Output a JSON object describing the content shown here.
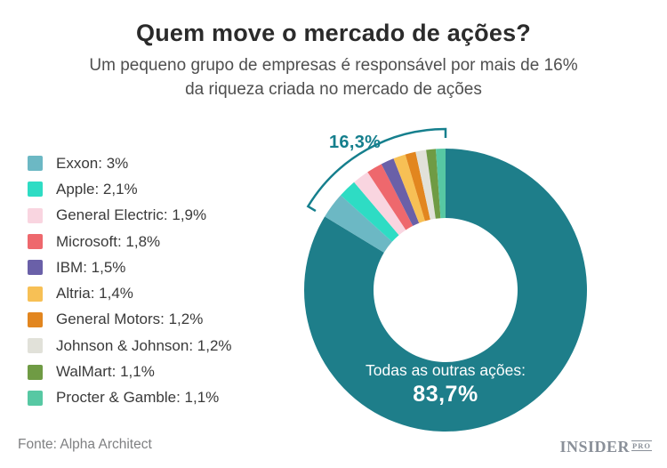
{
  "header": {
    "title": "Quem move o mercado de ações?",
    "subtitle_line1": "Um pequeno grupo de empresas é responsável por mais de 16%",
    "subtitle_line2": "da riqueza criada no mercado de ações"
  },
  "chart_data": {
    "type": "pie",
    "title": "Quem move o mercado de ações?",
    "donut": true,
    "inner_radius_ratio": 0.51,
    "start_angle_deg": 0,
    "direction": "clockwise",
    "accent_color": "#157f8d",
    "slices": [
      {
        "name": "Todas as outras ações",
        "pct": 83.7,
        "display": "83,7%",
        "color": "#1e7e8a",
        "in_legend": false
      },
      {
        "name": "Exxon",
        "pct": 3.0,
        "display": "3%",
        "legend_label": "Exxon: 3%",
        "color": "#6cb8c4",
        "in_legend": true
      },
      {
        "name": "Apple",
        "pct": 2.1,
        "display": "2,1%",
        "legend_label": "Apple: 2,1%",
        "color": "#2edcc4",
        "in_legend": true
      },
      {
        "name": "General Electric",
        "pct": 1.9,
        "display": "1,9%",
        "legend_label": "General Electric: 1,9%",
        "color": "#f9d5e0",
        "in_legend": true
      },
      {
        "name": "Microsoft",
        "pct": 1.8,
        "display": "1,8%",
        "legend_label": "Microsoft: 1,8%",
        "color": "#ee686d",
        "in_legend": true
      },
      {
        "name": "IBM",
        "pct": 1.5,
        "display": "1,5%",
        "legend_label": "IBM: 1,5%",
        "color": "#6a60a8",
        "in_legend": true
      },
      {
        "name": "Altria",
        "pct": 1.4,
        "display": "1,4%",
        "legend_label": "Altria: 1,4%",
        "color": "#f7c055",
        "in_legend": true
      },
      {
        "name": "General Motors",
        "pct": 1.2,
        "display": "1,2%",
        "legend_label": "General Motors: 1,2%",
        "color": "#e2861f",
        "in_legend": true
      },
      {
        "name": "Johnson & Johnson",
        "pct": 1.2,
        "display": "1,2%",
        "legend_label": "Johnson & Johnson: 1,2%",
        "color": "#e1e1d9",
        "in_legend": true
      },
      {
        "name": "WalMart",
        "pct": 1.1,
        "display": "1,1%",
        "legend_label": "WalMart: 1,1%",
        "color": "#6f9b44",
        "in_legend": true
      },
      {
        "name": "Procter & Gamble",
        "pct": 1.1,
        "display": "1,1%",
        "legend_label": "Procter & Gamble: 1,1%",
        "color": "#57c8a3",
        "in_legend": true
      }
    ],
    "group_annotation": {
      "label": "16,3%",
      "total_pct": 16.3
    },
    "center_label": {
      "line1": "Todas as outras ações:",
      "line2": "83,7%"
    },
    "legend_position": "left",
    "grid": false
  },
  "footer": {
    "source": "Fonte: Alpha Architect",
    "brand_name": "INSIDER",
    "brand_suffix": "PRO"
  }
}
